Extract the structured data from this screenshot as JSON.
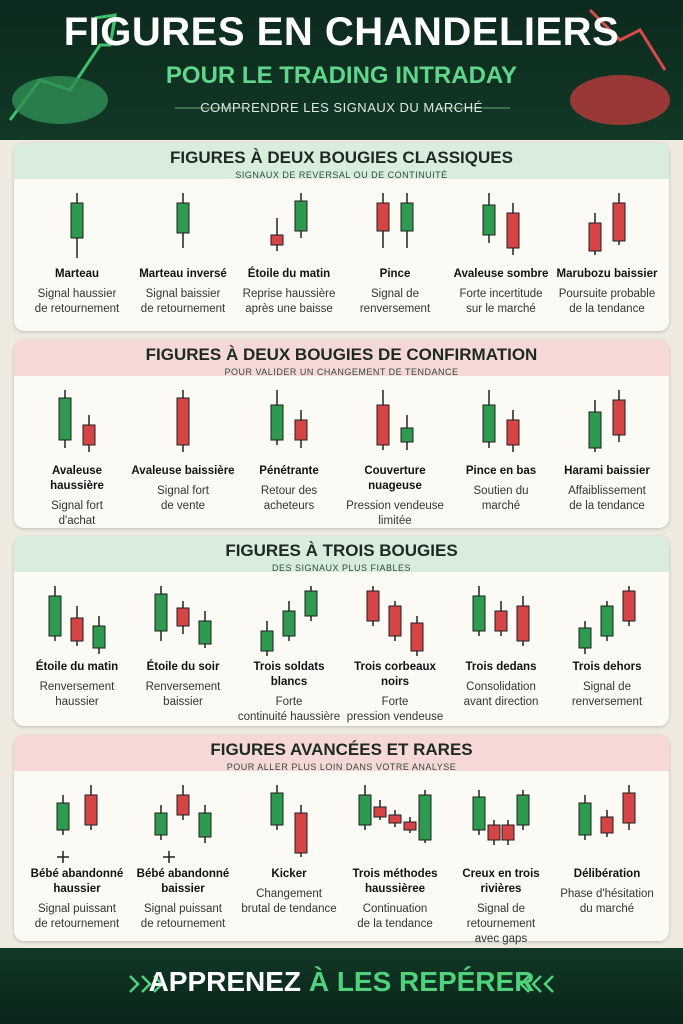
{
  "header": {
    "title": "FIGURES EN CHANDELIERS",
    "subtitle": "POUR LE TRADING INTRADAY",
    "tagline": "COMPRENDRE LES SIGNAUX DU MARCHÉ"
  },
  "sections": [
    {
      "title": "FIGURES À DEUX BOUGIES CLASSIQUES",
      "subtitle": "SIGNAUX DE REVERSAL OU DE CONTINUITÉ",
      "items": [
        {
          "name": "Marteau",
          "description": "Signal haussier\nde retournement"
        },
        {
          "name": "Marteau inversé",
          "description": "Signal baissier\nde retournement"
        },
        {
          "name": "Étoile du matin",
          "description": "Reprise haussière\naprès une baisse"
        },
        {
          "name": "Pince",
          "description": "Signal de\nrenversement"
        },
        {
          "name": "Avaleuse sombre",
          "description": "Forte incertitude\nsur le marché"
        },
        {
          "name": "Marubozu baissier",
          "description": "Poursuite probable\nde la tendance"
        }
      ]
    },
    {
      "title": "FIGURES À DEUX BOUGIES DE CONFIRMATION",
      "subtitle": "POUR VALIDER UN CHANGEMENT DE TENDANCE",
      "items": [
        {
          "name": "Avaleuse haussière",
          "description": "Signal fort\nd'achat"
        },
        {
          "name": "Avaleuse baissière",
          "description": "Signal fort\nde vente"
        },
        {
          "name": "Pénétrante",
          "description": "Retour des\nacheteurs"
        },
        {
          "name": "Couverture nuageuse",
          "description": "Pression vendeuse\nlimitée"
        },
        {
          "name": "Pince en bas",
          "description": "Soutien du\nmarché"
        },
        {
          "name": "Harami baissier",
          "description": "Affaiblissement\nde la tendance"
        }
      ]
    },
    {
      "title": "FIGURES À TROIS BOUGIES",
      "subtitle": "DES SIGNAUX PLUS FIABLES",
      "items": [
        {
          "name": "Étoile du matin",
          "description": "Renversement\nhaussier"
        },
        {
          "name": "Étoile du soir",
          "description": "Renversement\nbaissier"
        },
        {
          "name": "Trois soldats blancs",
          "description": "Forte\ncontinuité haussière"
        },
        {
          "name": "Trois corbeaux noirs",
          "description": "Forte\npression vendeuse"
        },
        {
          "name": "Trois dedans",
          "description": "Consolidation\navant direction"
        },
        {
          "name": "Trois dehors",
          "description": "Signal de\nrenversement"
        }
      ]
    },
    {
      "title": "FIGURES AVANCÉES ET RARES",
      "subtitle": "POUR ALLER PLUS LOIN DANS VOTRE ANALYSE",
      "items": [
        {
          "name": "Bébé abandonné\nhaussier",
          "description": "Signal puissant\nde retournement"
        },
        {
          "name": "Bébé abandonné\nbaissier",
          "description": "Signal puissant\nde retournement"
        },
        {
          "name": "Kicker",
          "description": "Changement\nbrutal de tendance"
        },
        {
          "name": "Trois méthodes\nhaussièree",
          "description": "Continuation\nde la tendance"
        },
        {
          "name": "Creux en trois rivières",
          "description": "Signal de retournement\navec gaps"
        },
        {
          "name": "Délibération",
          "description": "Phase d'hésitation\ndu marché"
        }
      ]
    }
  ],
  "footer": {
    "prefix": "APPRENEZ",
    "highlight": "À LES REPÉRER"
  }
}
